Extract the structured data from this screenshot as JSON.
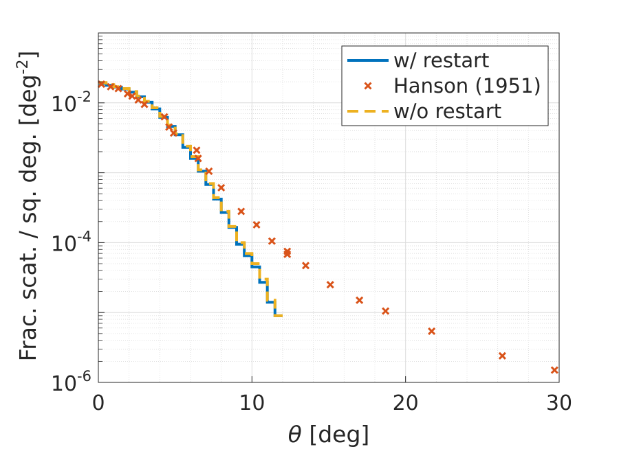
{
  "chart_data": {
    "type": "line",
    "xlabel_symbol": "θ",
    "xlabel_unit": " [deg]",
    "ylabel": "Frac. scat. / sq. deg. [deg",
    "ylabel_sup": "-2",
    "ylabel_close": "]",
    "xlim": [
      0,
      30
    ],
    "ylim": [
      1e-06,
      0.1
    ],
    "yscale": "log",
    "grid": true,
    "minor_grid": true,
    "legend_position": "top-right",
    "x_ticks": [
      0,
      10,
      20,
      30
    ],
    "x_tick_labels": [
      "0",
      "10",
      "20",
      "30"
    ],
    "y_ticks": [
      1e-06,
      0.0001,
      0.01
    ],
    "y_tick_labels": [
      {
        "base": "10",
        "exp": "-6"
      },
      {
        "base": "10",
        "exp": "-4"
      },
      {
        "base": "10",
        "exp": "-2"
      }
    ],
    "series": [
      {
        "name": "w/ restart",
        "style": "step",
        "color": "#0072BD",
        "x": [
          0,
          0.5,
          1.0,
          1.5,
          2.0,
          2.5,
          3.0,
          3.5,
          4.0,
          4.5,
          5.0,
          5.5,
          6.0,
          6.5,
          7.0,
          7.5,
          8.0,
          8.5,
          9.0,
          9.5,
          10.0,
          10.5,
          11.0,
          11.5
        ],
        "y": [
          0.019,
          0.0178,
          0.0168,
          0.0158,
          0.0142,
          0.0122,
          0.0102,
          0.0082,
          0.0062,
          0.0046,
          0.0035,
          0.0023,
          0.0016,
          0.00105,
          0.00068,
          0.00042,
          0.00027,
          0.000165,
          9.5e-05,
          6.5e-05,
          4.5e-05,
          2.7e-05,
          1.4e-05,
          9e-06
        ]
      },
      {
        "name": "Hanson (1951)",
        "style": "markers",
        "color": "#D95319",
        "x": [
          0.2,
          0.8,
          1.3,
          1.9,
          2.2,
          2.6,
          3.0,
          4.3,
          4.6,
          4.9,
          6.4,
          6.5,
          7.2,
          8.0,
          9.3,
          10.3,
          11.3,
          12.3,
          12.3,
          13.5,
          15.1,
          17.0,
          18.7,
          21.7,
          26.3,
          29.7
        ],
        "y": [
          0.0185,
          0.017,
          0.016,
          0.0135,
          0.0125,
          0.011,
          0.0095,
          0.0063,
          0.0045,
          0.0037,
          0.0021,
          0.0016,
          0.00105,
          0.00061,
          0.00028,
          0.00018,
          0.000105,
          7.5e-05,
          6.8e-05,
          4.7e-05,
          2.5e-05,
          1.5e-05,
          1.05e-05,
          5.4e-06,
          2.4e-06,
          1.5e-06
        ]
      },
      {
        "name": "w/o restart",
        "style": "step-dashed",
        "color": "#EDB120",
        "x": [
          0,
          0.5,
          1.0,
          1.5,
          2.0,
          2.5,
          3.0,
          3.5,
          4.0,
          4.5,
          5.0,
          5.5,
          6.0,
          6.5,
          7.0,
          7.5,
          8.0,
          8.5,
          9.0,
          9.5,
          10.0,
          10.5,
          11.0,
          11.5
        ],
        "y": [
          0.0195,
          0.0182,
          0.017,
          0.016,
          0.0145,
          0.0125,
          0.0105,
          0.0085,
          0.0064,
          0.0048,
          0.0036,
          0.0024,
          0.0017,
          0.0011,
          0.0007,
          0.00044,
          0.00028,
          0.00017,
          0.0001,
          7e-05,
          5e-05,
          3e-05,
          1.5e-05,
          9e-06
        ]
      }
    ]
  }
}
